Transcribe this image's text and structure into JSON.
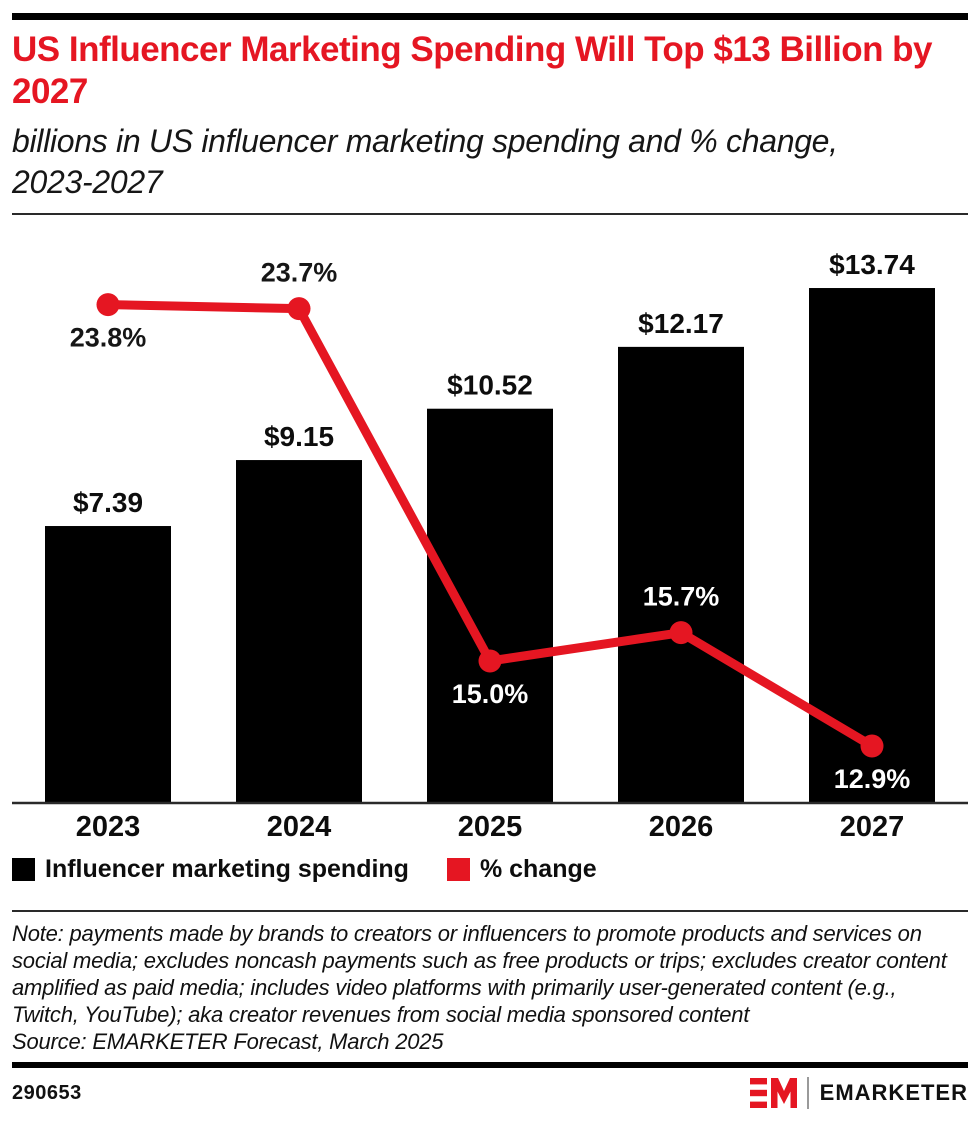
{
  "header": {
    "title": "US Influencer Marketing Spending Will Top $13 Billion by 2027",
    "subtitle": "billions in US influencer marketing spending and % change, 2023-2027"
  },
  "chart_data": {
    "type": "bar",
    "subtype": "bar-line-combo",
    "categories": [
      "2023",
      "2024",
      "2025",
      "2026",
      "2027"
    ],
    "series": [
      {
        "name": "Influencer marketing spending",
        "type": "bar",
        "unit": "billions USD",
        "values": [
          7.39,
          9.15,
          10.52,
          12.17,
          13.74
        ],
        "labels": [
          "$7.39",
          "$9.15",
          "$10.52",
          "$12.17",
          "$13.74"
        ],
        "color": "#000000"
      },
      {
        "name": "% change",
        "type": "line",
        "unit": "%",
        "values": [
          23.8,
          23.7,
          15.0,
          15.7,
          12.9
        ],
        "labels": [
          "23.8%",
          "23.7%",
          "15.0%",
          "15.7%",
          "12.9%"
        ],
        "color": "#e51622",
        "label_positions": [
          "below",
          "above",
          "below",
          "above",
          "below"
        ],
        "label_colors": [
          "#161616",
          "#161616",
          "#ffffff",
          "#ffffff",
          "#ffffff"
        ]
      }
    ],
    "title": "US Influencer Marketing Spending Will Top $13 Billion by 2027",
    "xlabel": "",
    "ylabel": "",
    "grid": false,
    "legend_position": "bottom",
    "axis_color": "#2a2a2a"
  },
  "legend": {
    "items": [
      {
        "label": "Influencer marketing spending",
        "color": "#000000"
      },
      {
        "label": "% change",
        "color": "#e51622"
      }
    ]
  },
  "note": {
    "text": "Note: payments made by brands to creators or influencers to promote products and services on social media; excludes noncash payments such as free products or trips; excludes creator content amplified as paid media; includes video platforms with primarily user-generated content (e.g., Twitch, YouTube); aka creator revenues from social media sponsored content",
    "source": "Source: EMARKETER Forecast, March 2025"
  },
  "footer": {
    "chart_id": "290653",
    "brand": "EMARKETER"
  }
}
